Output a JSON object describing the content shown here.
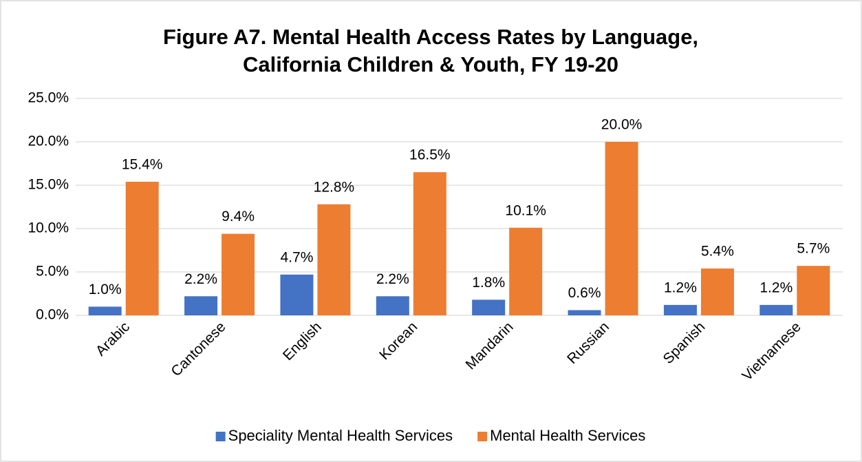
{
  "chart_data": {
    "type": "bar",
    "title": [
      "Figure A7. Mental Health Access Rates by Language,",
      "California Children & Youth, FY 19-20"
    ],
    "categories": [
      "Arabic",
      "Cantonese",
      "English",
      "Korean",
      "Mandarin",
      "Russian",
      "Spanish",
      "Vietnamese"
    ],
    "series": [
      {
        "name": "Speciality Mental Health Services",
        "color": "#4472c4",
        "values": [
          1.0,
          2.2,
          4.7,
          2.2,
          1.8,
          0.6,
          1.2,
          1.2
        ],
        "value_labels": [
          "1.0%",
          "2.2%",
          "4.7%",
          "2.2%",
          "1.8%",
          "0.6%",
          "1.2%",
          "1.2%"
        ]
      },
      {
        "name": "Mental Health Services",
        "color": "#ed7d31",
        "values": [
          15.4,
          9.4,
          12.8,
          16.5,
          10.1,
          20.0,
          5.4,
          5.7
        ],
        "value_labels": [
          "15.4%",
          "9.4%",
          "12.8%",
          "16.5%",
          "10.1%",
          "20.0%",
          "5.4%",
          "5.7%"
        ]
      }
    ],
    "ylim": [
      0,
      25
    ],
    "yticks": [
      {
        "value": 0,
        "label": "0.0%"
      },
      {
        "value": 5,
        "label": "5.0%"
      },
      {
        "value": 10,
        "label": "10.0%"
      },
      {
        "value": 15,
        "label": "15.0%"
      },
      {
        "value": 20,
        "label": "20.0%"
      },
      {
        "value": 25,
        "label": "25.0%"
      }
    ],
    "grid": true,
    "legend": "bottom"
  }
}
